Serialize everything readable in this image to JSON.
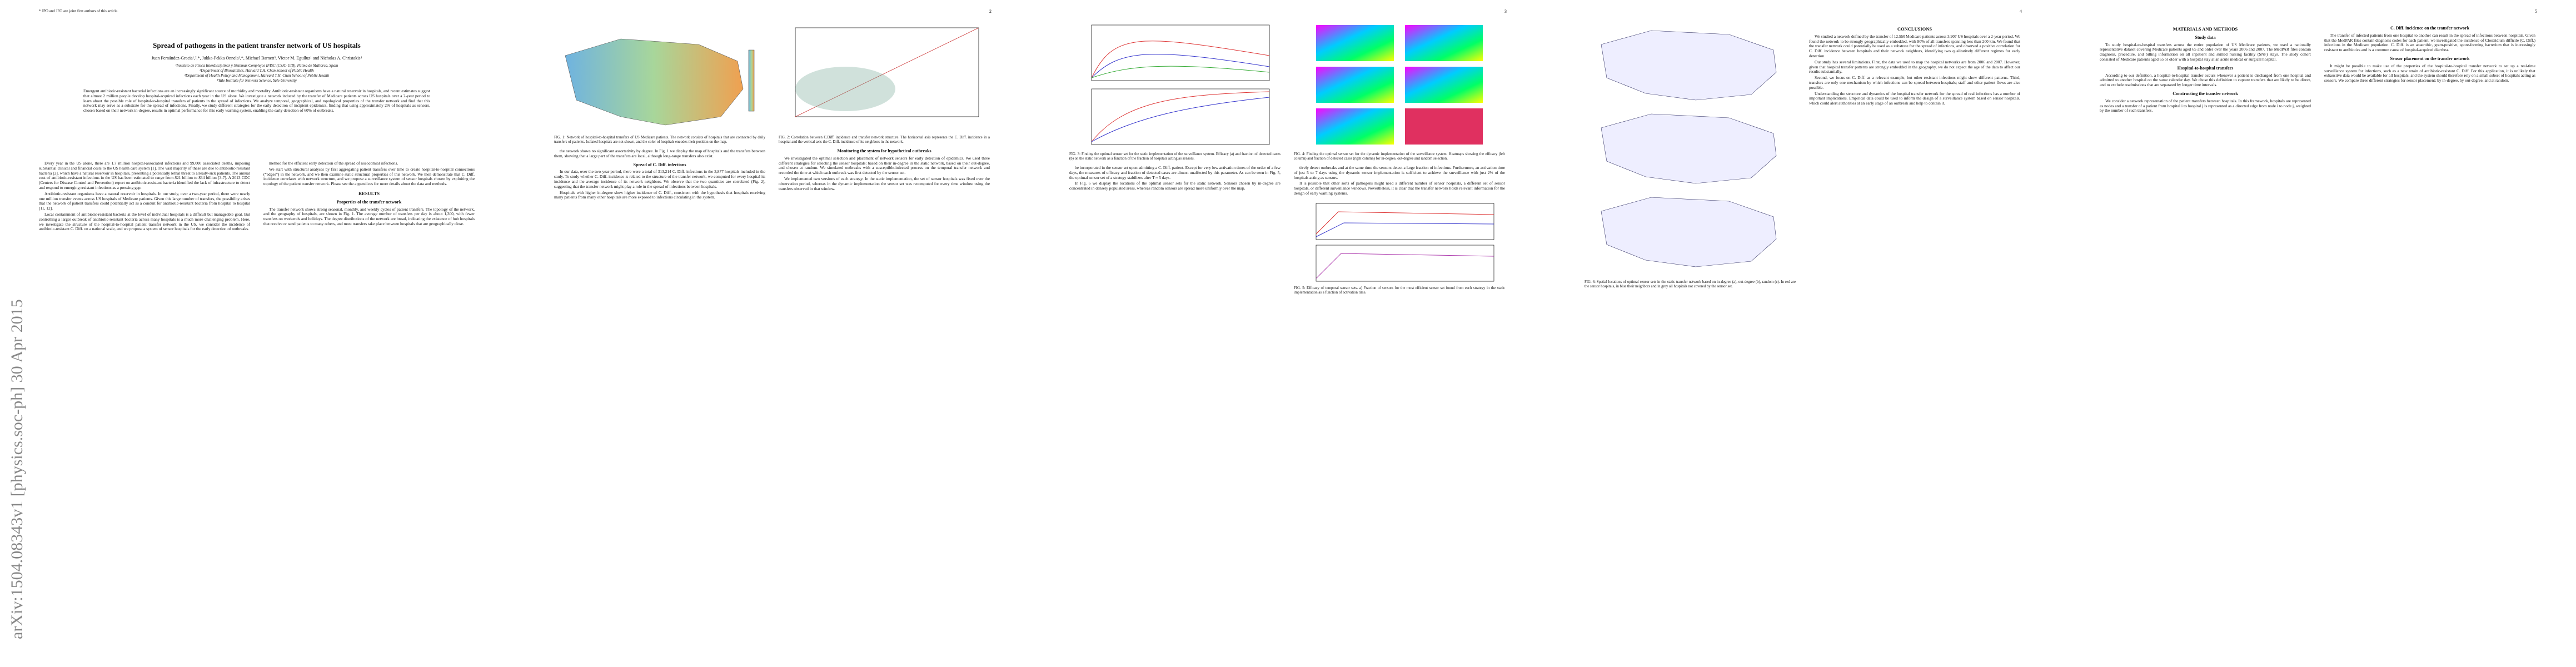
{
  "pages": [
    {
      "footnote": "* JPO and JFO are joint first authors of this article.",
      "title": "Spread of pathogens in the patient transfer network of US hospitals",
      "authors": "Juan Fernández-Gracia¹,²,*, Jukka-Pekka Onnela²,*, Michael Barnett³, Víctor M. Eguíluz¹ and Nicholas A. Christakis⁴",
      "affiliations": [
        "¹Instituto de Física Interdisciplinar y Sistemas Complejos IFISC (CSIC-UIB), Palma de Mallorca, Spain",
        "²Department of Biostatistics, Harvard T.H. Chan School of Public Health",
        "³Department of Health Policy and Management, Harvard T.H. Chan School of Public Health",
        "⁴Yale Institute for Network Science, Yale University"
      ],
      "abstract": "Emergent antibiotic-resistant bacterial infections are an increasingly significant source of morbidity and mortality. Antibiotic-resistant organisms have a natural reservoir in hospitals, and recent estimates suggest that almost 2 million people develop hospital-acquired infections each year in the US alone. We investigate a network induced by the transfer of Medicare patients across US hospitals over a 2-year period to learn about the possible role of hospital-to-hospital transfers of patients in the spread of infections. We analyze temporal, geographical, and topological properties of the transfer network and find that this network may serve as a substrate for the spread of infections. Finally, we study different strategies for the early detection of incipient epidemics, finding that using approximately 2% of hospitals as sensors, chosen based on their network in-degree, results in optimal performance for this early warning system, enabling the early detection of 60% of outbreaks.",
      "arxiv": "arXiv:1504.08343v1 [physics.soc-ph] 30 Apr 2015",
      "col1": [
        "Every year in the US alone, there are 1.7 million hospital-associated infections and 99,000 associated deaths, imposing substantial clinical and financial costs to the US health care system [1]. The vast majority of these are due to antibiotic-resistant bacteria [2], which have a natural reservoir in hospitals, presenting a potentially lethal threat to already-sick patients. The annual cost of antibiotic-resistant infections in the US has been estimated to range from $21 billion to $34 billion [3-7]. A 2013 CDC (Centers for Disease Control and Prevention) report on antibiotic-resistant bacteria identified the lack of infrastructure to detect and respond to emerging resistant infections as a pressing gap.",
        "Antibiotic-resistant organisms have a natural reservoir in hospitals. In our study, over a two-year period, there were nearly one million transfer events across US hospitals of Medicare patients. Given this large number of transfers, the possibility arises that the network of patient transfers could potentially act as a conduit for antibiotic-resistant bacteria from hospital to hospital [11, 12].",
        "Local containment of antibiotic-resistant bacteria at the level of individual hospitals is a difficult but manageable goal. But controlling a larger outbreak of antibiotic-resistant bacteria across many hospitals is a much more challenging problem. Here, we investigate the structure of the hospital-to-hospital patient transfer network in the US, we consider the incidence of antibiotic-resistant C. Diff. on a national scale, and we propose a system of sensor hospitals for the early detection of outbreaks."
      ],
      "col2": [
        "method for the efficient early detection of the spread of nosocomial infections.",
        "We start with structural analyses by first aggregating patient transfers over time to create hospital-to-hospital connections (“edges”) in the network, and we then examine static structural properties of this network. We then demonstrate that C. Diff. incidence correlates with network structure, and we propose a surveillance system of sensor hospitals chosen by exploiting the topology of the patient transfer network. Please see the appendices for more details about the data and methods."
      ],
      "results": "RESULTS",
      "sub1": "Properties of the transfer network",
      "col2b": [
        "The transfer network shows strong seasonal, monthly, and weekly cycles of patient transfers. The topology of the network, and the geography of hospitals, are shown in Fig. 1. The average number of transfers per day is about 1,300, with fewer transfers on weekends and holidays. The degree distributions of the network are broad, indicating the existence of hub hospitals that receive or send patients to many others, and most transfers take place between hospitals that are geographically close."
      ]
    },
    {
      "number": "2",
      "fig1_caption": "FIG. 1: Network of hospital-to-hospital transfers of US Medicare patients. The network consists of hospitals that are connected by daily transfers of patients. Isolated hospitals are not shown, and the color of hospitals encodes their position on the map.",
      "fig2_caption": "FIG. 2: Correlation between C.Diff. incidence and transfer network structure. The horizontal axis represents the C. Diff. incidence in a hospital and the vertical axis the C. Diff. incidence of its neighbors in the network.",
      "col1": [
        "the network shows no significant assortativity by degree. In Fig. 1 we display the map of hospitals and the transfers between them, showing that a large part of the transfers are local, although long-range transfers also exist."
      ],
      "sub1": "Spread of C. Diff. infections",
      "col1b": [
        "In our data, over the two-year period, there were a total of 313,214 C. Diff. infections in the 3,877 hospitals included in the study. To study whether C. Diff. incidence is related to the structure of the transfer network, we computed for every hospital its incidence and the average incidence of its network neighbors. We observe that the two quantities are correlated (Fig. 2), suggesting that the transfer network might play a role in the spread of infections between hospitals.",
        "Hospitals with higher in-degree show higher incidence of C. Diff., consistent with the hypothesis that hospitals receiving many patients from many other hospitals are more exposed to infections circulating in the system."
      ],
      "sub2": "Monitoring the system for hypothetical outbreaks",
      "col2": [
        "We investigated the optimal selection and placement of network sensors for early detection of epidemics. We used three different strategies for selecting the sensor hospitals: based on their in-degree in the static network, based on their out-degree, and chosen at random. We simulated outbreaks with a susceptible-infected process on the temporal transfer network and recorded the time at which each outbreak was first detected by the sensor set.",
        "We implemented two versions of each strategy. In the static implementation, the set of sensor hospitals was fixed over the observation period, whereas in the dynamic implementation the sensor set was recomputed for every time window using the transfers observed in that window."
      ]
    },
    {
      "number": "3",
      "fig3_caption": "FIG. 3: Finding the optimal sensor set for the static implementation of the surveillance system. Efficacy (a) and fraction of detected cases (b) on the static network as a function of the fraction of hospitals acting as sensors.",
      "fig4_caption": "FIG. 4: Finding the optimal sensor set for the dynamic implementation of the surveillance system. Heatmaps showing the efficacy (left column) and fraction of detected cases (right column) for in-degree, out-degree and random selection.",
      "fig5_caption": "FIG. 5: Efficacy of temporal sensor sets. a) Fraction of sensors for the most efficient sensor set found from each strategy in the static implementation as a function of activation time.",
      "col1": [
        "be incorporated in the sensor set upon admitting a C. Diff. patient. Except for very low activation times of the order of a few days, the measures of efficacy and fraction of detected cases are almost unaffected by this parameter. As can be seen in Fig. 5, the optimal sensor set of a strategy stabilizes after T ≈ 5 days.",
        "In Fig. 6 we display the locations of the optimal sensor sets for the static network. Sensors chosen by in-degree are concentrated in densely populated areas, whereas random sensors are spread more uniformly over the map."
      ],
      "col2": [
        "tively detect outbreaks and at the same time the sensors detect a large fraction of infections. Furthermore, an activation time of just 5 to 7 days using the dynamic sensor implementation is sufficient to achieve the surveillance with just 2% of the hospitals acting as sensors.",
        "It is possible that other sorts of pathogens might need a different number of sensor hospitals, a different set of sensor hospitals, or different surveillance windows. Nevertheless, it is clear that the transfer network holds relevant information for the design of early warning systems."
      ]
    },
    {
      "number": "4",
      "fig6_caption": "FIG. 6: Spatial locations of optimal sensor sets in the static transfer network based on in-degree (a), out-degree (b), random (c). In red are the sensor hospitals, in blue their neighbors and in grey all hospitals not covered by the sensor set.",
      "heading": "CONCLUSIONS",
      "col1": [
        "We studied a network defined by the transfer of 12.5M Medicare patients across 3,907 US hospitals over a 2-year period. We found the network to be strongly geographically embedded, with 80% of all transfers spanning less than 200 km. We found that the transfer network could potentially be used as a substrate for the spread of infections, and observed a positive correlation for C. Diff. incidence between hospitals and their network neighbors, identifying two qualitatively different regimes for early detection.",
        "Our study has several limitations. First, the data we used to map the hospital networks are from 2006 and 2007. However, given that hospital transfer patterns are strongly embedded in the geography, we do not expect the age of the data to affect our results substantially."
      ],
      "col2": [
        "Second, we focus on C. Diff. as a relevant example, but other resistant infections might show different patterns. Third, transfers are only one mechanism by which infections can be spread between hospitals; staff and other patient flows are also possible.",
        "Understanding the structure and dynamics of the hospital transfer network for the spread of real infections has a number of important implications. Empirical data could be used to inform the design of a surveillance system based on sensor hospitals, which could alert authorities at an early stage of an outbreak and help to contain it."
      ]
    },
    {
      "number": "5",
      "heading": "MATERIALS AND METHODS",
      "sub1": "Study data",
      "col1": [
        "To study hospital-to-hospital transfers across the entire population of US Medicare patients, we used a nationally representative dataset covering Medicare patients aged 65 and older over the years 2006 and 2007. The MedPAR files contain diagnosis, procedure, and billing information on all inpatient and skilled nursing facility (SNF) stays. The study cohort consisted of Medicare patients aged 65 or older with a hospital stay at an acute medical or surgical hospital."
      ],
      "sub2": "Hospital-to-hospital transfers",
      "col1b": [
        "According to our definition, a hospital-to-hospital transfer occurs whenever a patient is discharged from one hospital and admitted to another hospital on the same calendar day. We chose this definition to capture transfers that are likely to be direct, and to exclude readmissions that are separated by longer time intervals."
      ],
      "sub3": "Constructing the transfer network",
      "col1c": [
        "We consider a network representation of the patient transfers between hospitals. In this framework, hospitals are represented as nodes and a transfer of a patient from hospital i to hospital j is represented as a directed edge from node i to node j, weighted by the number of such transfers."
      ],
      "sub4": "C. Diff. incidence on the transfer network",
      "col2": [
        "The transfer of infected patients from one hospital to another can result in the spread of infections between hospitals. Given that the MedPAR files contain diagnosis codes for each patient, we investigated the incidence of Clostridium difficile (C. Diff.) infections in the Medicare population. C. Diff. is an anaerobic, gram-positive, spore-forming bacterium that is increasingly resistant to antibiotics and is a common cause of hospital-acquired diarrhea."
      ],
      "sub5": "Sensor placement on the transfer network",
      "col2b": [
        "It might be possible to make use of the properties of the hospital-to-hospital transfer network to set up a real-time surveillance system for infections, such as a new strain of antibiotic-resistant C. Diff. For this application, it is unlikely that exhaustive data would be available for all hospitals, and the system should therefore rely on a small subset of hospitals acting as sensors. We compare three different strategies for sensor placement: by in-degree, by out-degree, and at random."
      ]
    }
  ]
}
